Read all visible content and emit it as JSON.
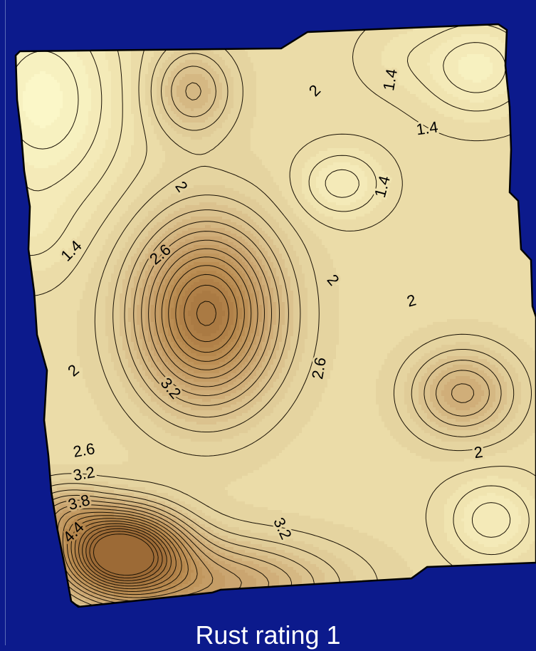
{
  "caption": "Rust rating 1",
  "colors": {
    "background": "#0c1a8c",
    "low": "#fbf7c8",
    "high": "#9c6a36",
    "contour_line": "#1a1205",
    "caption_text": "#ffffff"
  },
  "map": {
    "variable": "Rust rating 1",
    "contour_labels": [
      {
        "text": "2",
        "value": 2.0
      },
      {
        "text": "1.4",
        "value": 1.4
      },
      {
        "text": "1.4",
        "value": 1.4
      },
      {
        "text": "2",
        "value": 2.0
      },
      {
        "text": "1.4",
        "value": 1.4
      },
      {
        "text": "1.4",
        "value": 1.4
      },
      {
        "text": "2.6",
        "value": 2.6
      },
      {
        "text": "2",
        "value": 2.0
      },
      {
        "text": "2",
        "value": 2.0
      },
      {
        "text": "2",
        "value": 2.0
      },
      {
        "text": "2.6",
        "value": 2.6
      },
      {
        "text": "3.2",
        "value": 3.2
      },
      {
        "text": "2.6",
        "value": 2.6
      },
      {
        "text": "3.2",
        "value": 3.2
      },
      {
        "text": "3.8",
        "value": 3.8
      },
      {
        "text": "4.4",
        "value": 4.4
      },
      {
        "text": "2",
        "value": 2.0
      },
      {
        "text": "3.2",
        "value": 3.2
      }
    ]
  }
}
